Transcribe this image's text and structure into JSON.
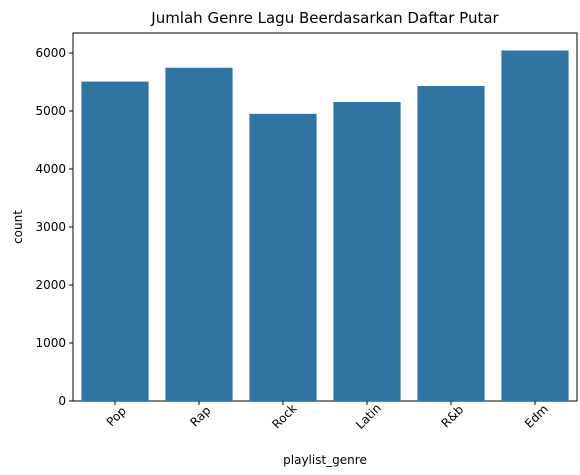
{
  "chart_data": {
    "type": "bar",
    "title": "Jumlah Genre Lagu Beerdasarkan Daftar Putar",
    "xlabel": "playlist_genre",
    "ylabel": "count",
    "categories": [
      "Pop",
      "Rap",
      "Rock",
      "Latin",
      "R&b",
      "Edm"
    ],
    "values": [
      5507,
      5746,
      4951,
      5155,
      5431,
      6043
    ],
    "ylim": [
      0,
      6345
    ],
    "yticks": [
      0,
      1000,
      2000,
      3000,
      4000,
      5000,
      6000
    ],
    "grid": false,
    "bar_color": "#3274a1",
    "xtick_rotation": 45
  }
}
